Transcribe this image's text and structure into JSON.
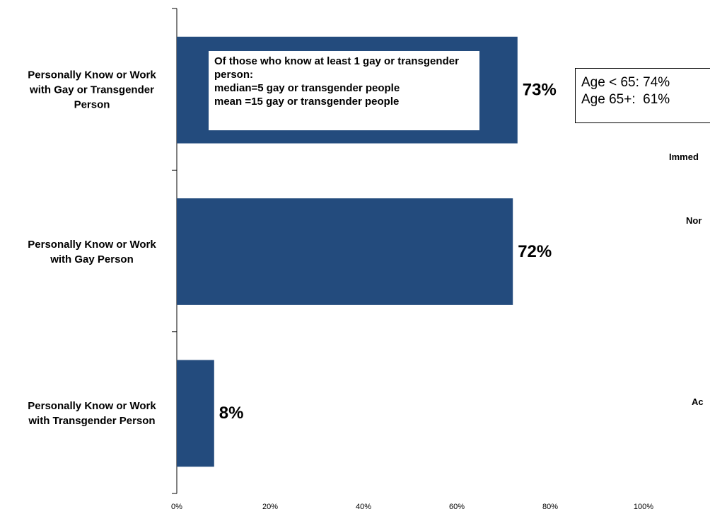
{
  "chart_data": {
    "type": "barh",
    "categories": [
      "Personally Know or Work with Gay or Transgender Person",
      "Personally Know or Work with Gay Person",
      "Personally Know or Work with Transgender Person"
    ],
    "values": [
      73,
      72,
      8
    ],
    "value_labels": [
      "73%",
      "72%",
      "8%"
    ],
    "color": "#234b7d",
    "xlim": [
      0,
      100
    ],
    "xticks": [
      {
        "value": 0,
        "label": "0%"
      },
      {
        "value": 20,
        "label": "20%"
      },
      {
        "value": 40,
        "label": "40%"
      },
      {
        "value": 60,
        "label": "60%"
      },
      {
        "value": 80,
        "label": "80%"
      },
      {
        "value": 100,
        "label": "100%"
      }
    ],
    "annotations": {
      "note": [
        "Of those who know at least 1 gay or transgender person:",
        "median=5 gay or transgender people",
        "mean =15 gay or transgender people"
      ],
      "age_box": [
        "Age < 65: 74%",
        "Age 65+:  61%"
      ],
      "cut_labels": [
        "Immed",
        "Nor",
        "Ac"
      ]
    }
  }
}
